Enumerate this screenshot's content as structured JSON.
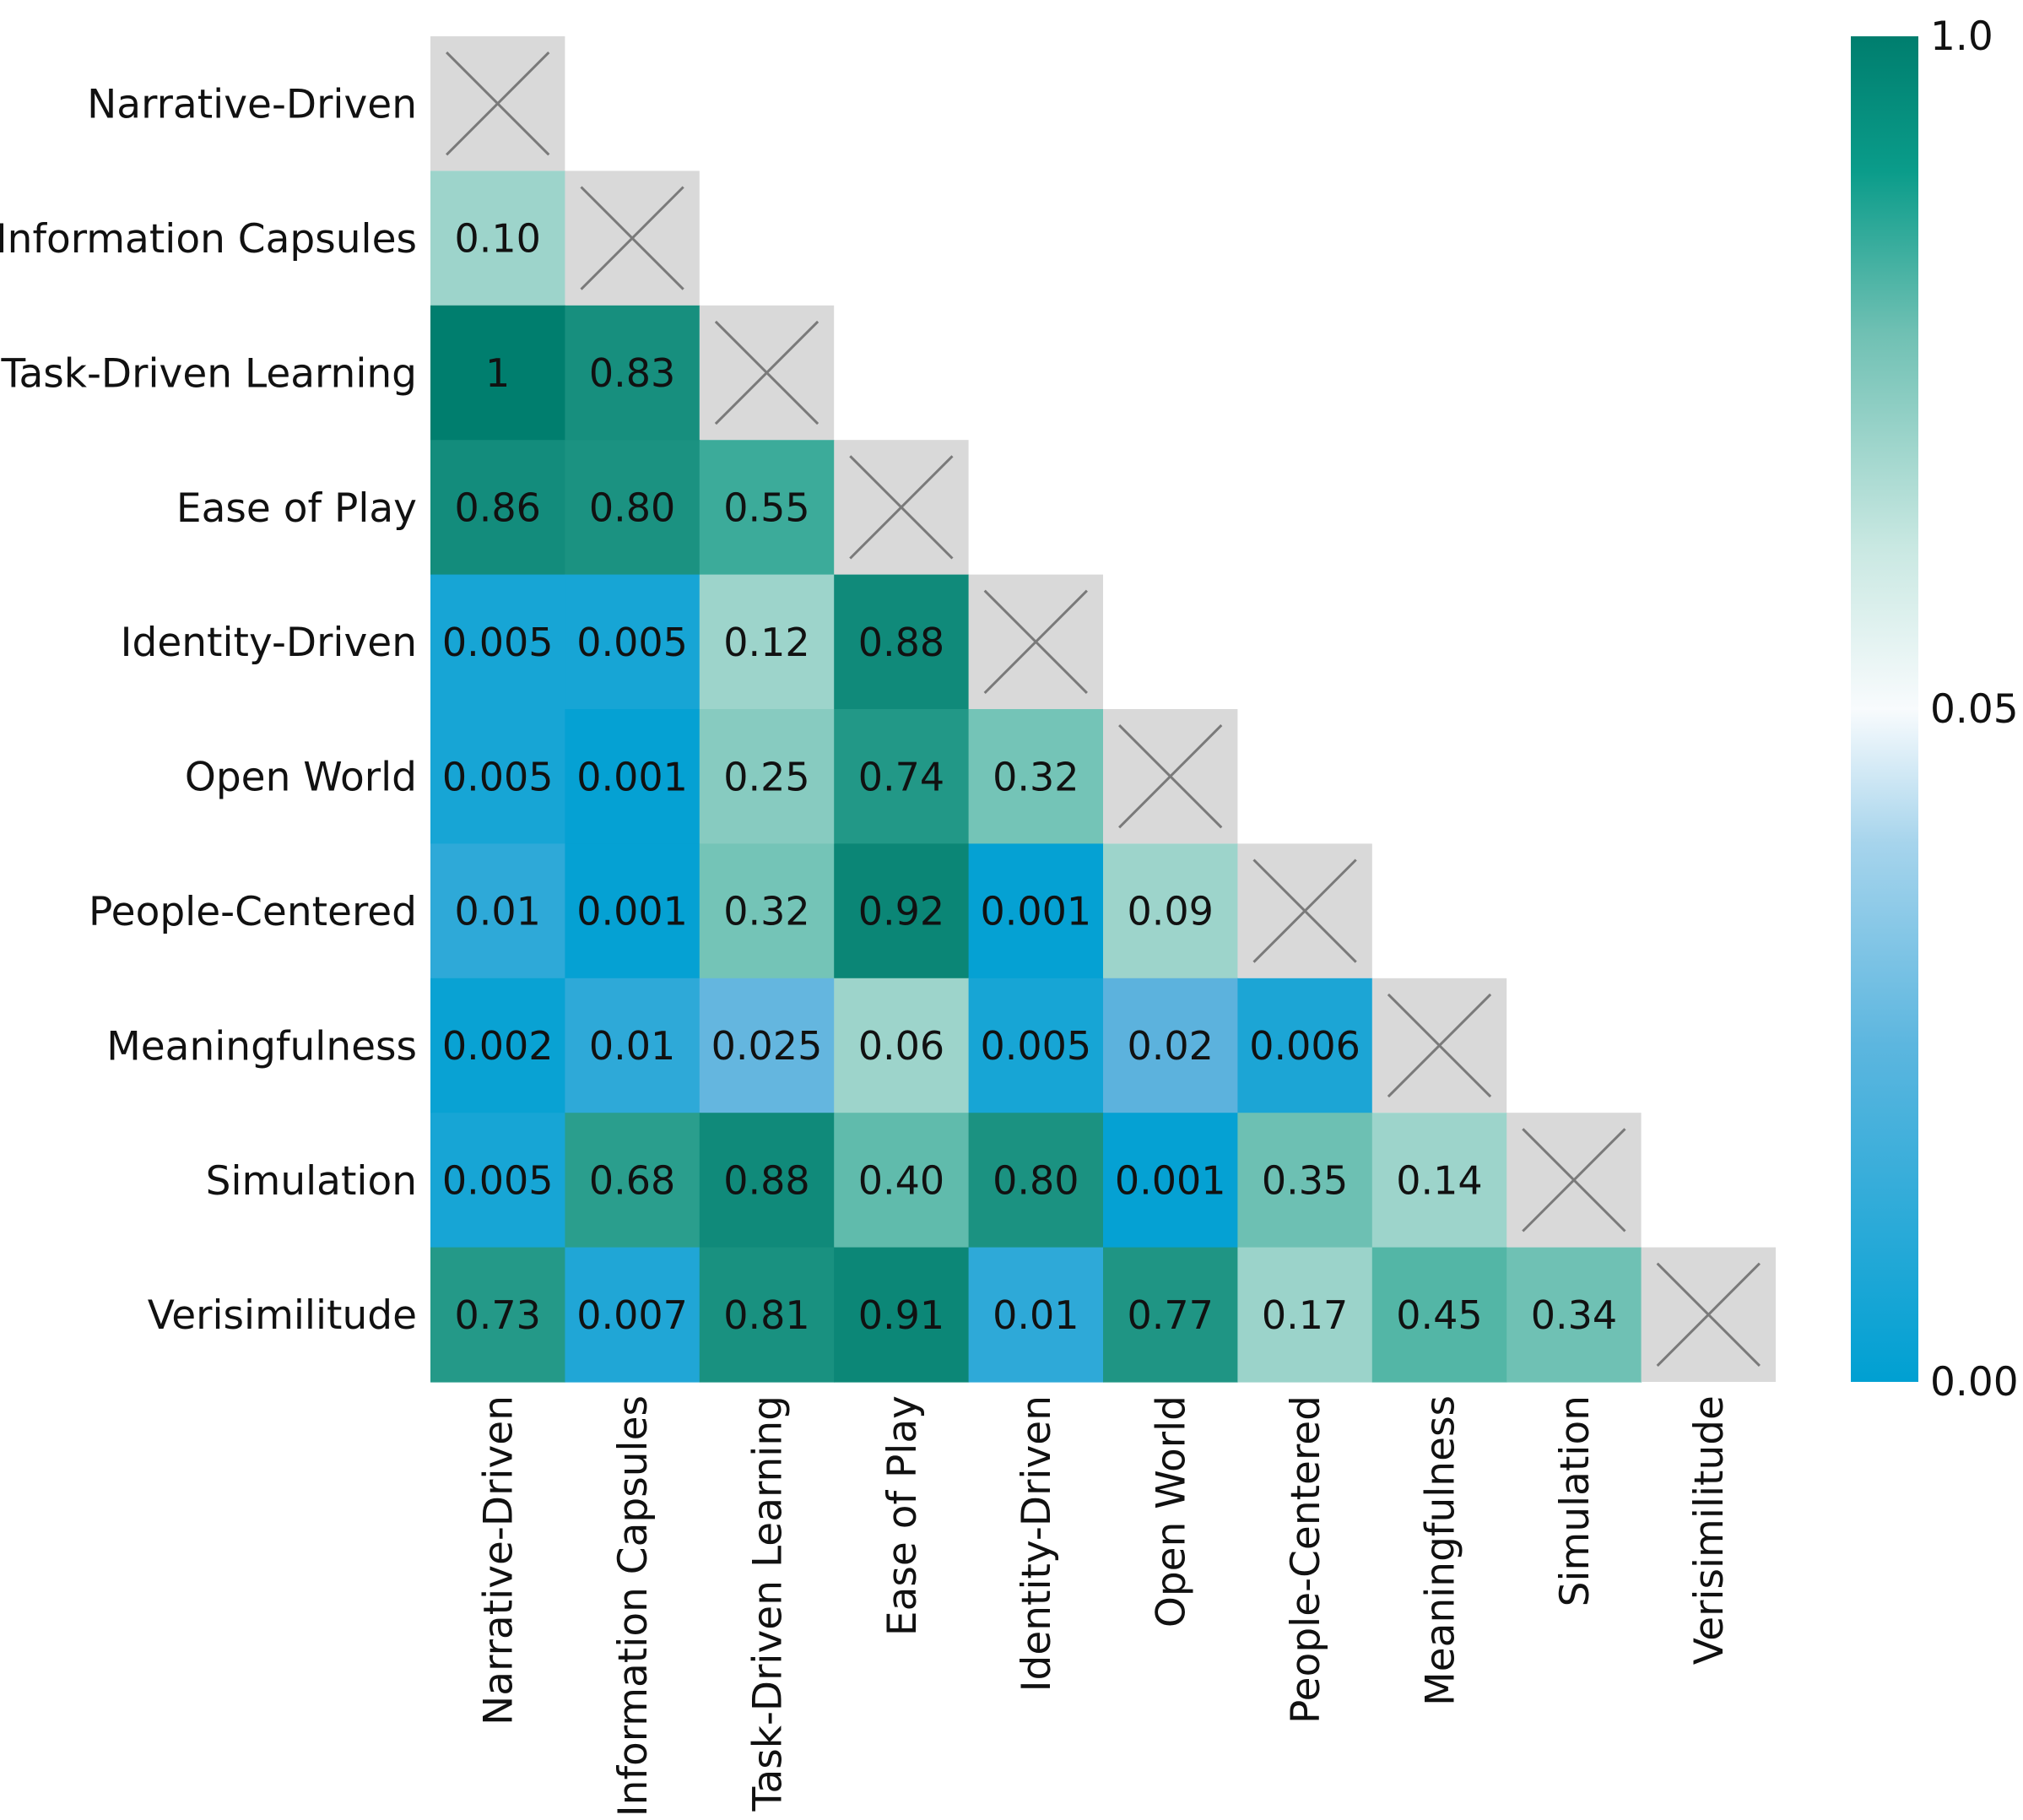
{
  "chart_data": {
    "type": "heatmap",
    "title": "",
    "xlabel": "",
    "ylabel": "",
    "matrix_shape": "lower-triangular",
    "diagonal": "x-mark",
    "categories": [
      "Narrative-Driven",
      "Information Capsules",
      "Task-Driven Learning",
      "Ease of Play",
      "Identity-Driven",
      "Open World",
      "People-Centered",
      "Meaningfulness",
      "Simulation",
      "Verisimilitude"
    ],
    "rows": [
      [],
      [
        "0.10"
      ],
      [
        "1",
        "0.83"
      ],
      [
        "0.86",
        "0.80",
        "0.55"
      ],
      [
        "0.005",
        "0.005",
        "0.12",
        "0.88"
      ],
      [
        "0.005",
        "0.001",
        "0.25",
        "0.74",
        "0.32"
      ],
      [
        "0.01",
        "0.001",
        "0.32",
        "0.92",
        "0.001",
        "0.09"
      ],
      [
        "0.002",
        "0.01",
        "0.025",
        "0.06",
        "0.005",
        "0.02",
        "0.006"
      ],
      [
        "0.005",
        "0.68",
        "0.88",
        "0.40",
        "0.80",
        "0.001",
        "0.35",
        "0.14"
      ],
      [
        "0.73",
        "0.007",
        "0.81",
        "0.91",
        "0.01",
        "0.77",
        "0.17",
        "0.45",
        "0.34"
      ]
    ],
    "colorbar": {
      "tick_labels": [
        "1.0",
        "0.05",
        "0.00"
      ],
      "tick_values": [
        1.0,
        0.05,
        0.0
      ],
      "colors": {
        "low": "#00a0d2",
        "mid_low": "#8ec8e6",
        "mid": "#ffffff",
        "mid_high": "#9dd4cb",
        "high": "#007e6e"
      }
    },
    "diagonal_color": "#d9d9d9"
  }
}
